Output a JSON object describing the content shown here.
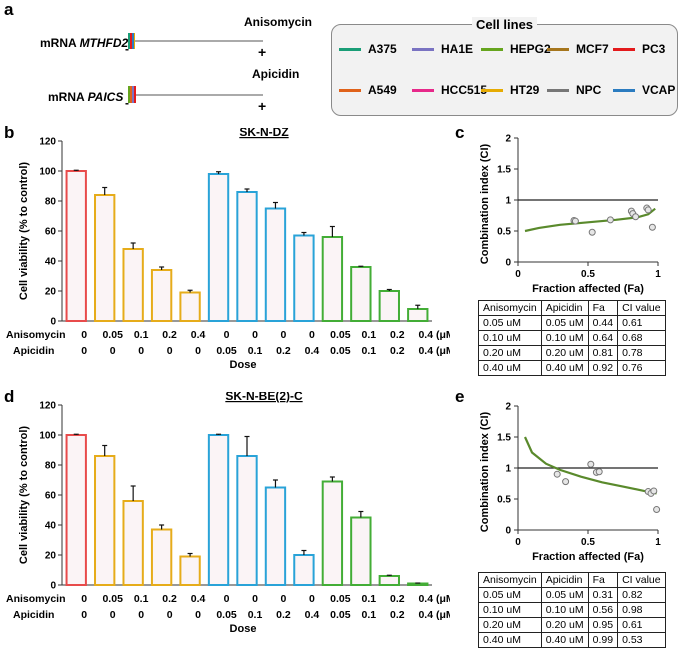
{
  "panels": {
    "a": "a",
    "b": "b",
    "c": "c",
    "d": "d",
    "e": "e"
  },
  "panel_a": {
    "tracks": [
      {
        "label_prefix": "mRNA ",
        "gene": "MTHFD2",
        "drug": "Anisomycin",
        "minus": "-",
        "plus": "+"
      },
      {
        "label_prefix": "mRNA ",
        "gene": "PAICS",
        "drug": "Apicidin",
        "minus": "-",
        "plus": "+"
      }
    ]
  },
  "legend": {
    "title": "Cell lines",
    "items": [
      {
        "name": "A375",
        "color": "#1a9e77"
      },
      {
        "name": "HA1E",
        "color": "#7a73c2"
      },
      {
        "name": "HEPG2",
        "color": "#66a51e"
      },
      {
        "name": "MCF7",
        "color": "#a6761d"
      },
      {
        "name": "PC3",
        "color": "#e31a1c"
      },
      {
        "name": "A549",
        "color": "#e0621a"
      },
      {
        "name": "HCC515",
        "color": "#e7298a"
      },
      {
        "name": "HT29",
        "color": "#e6ab02"
      },
      {
        "name": "NPC",
        "color": "#777777"
      },
      {
        "name": "VCAP",
        "color": "#2b7cc0"
      }
    ]
  },
  "chart_data": [
    {
      "id": "b",
      "type": "bar",
      "title": "SK-N-DZ",
      "ylabel": "Cell viability (% to control)",
      "xlabel": "Dose",
      "ylim": [
        0,
        120
      ],
      "yticks": [
        0,
        20,
        40,
        60,
        80,
        100,
        120
      ],
      "row_labels": [
        "Anisomycin",
        "Apicidin"
      ],
      "unit": "(μM)",
      "anisomycin": [
        "0",
        "0.05",
        "0.1",
        "0.2",
        "0.4",
        "0",
        "0",
        "0",
        "0",
        "0.05",
        "0.1",
        "0.2",
        "0.4"
      ],
      "apicidin": [
        "0",
        "0",
        "0",
        "0",
        "0",
        "0.05",
        "0.1",
        "0.2",
        "0.4",
        "0.05",
        "0.1",
        "0.2",
        "0.4"
      ],
      "values": [
        100,
        84,
        48,
        34,
        19,
        98,
        86,
        75,
        57,
        56,
        36,
        20,
        8
      ],
      "errors": [
        0.5,
        5,
        4,
        2,
        1.5,
        1.5,
        2,
        4,
        2,
        7,
        0.5,
        1,
        2.5
      ],
      "colors": [
        "#e84b4b",
        "#e6ac1a",
        "#e6ac1a",
        "#e6ac1a",
        "#e6ac1a",
        "#29a3d8",
        "#29a3d8",
        "#29a3d8",
        "#29a3d8",
        "#43ad36",
        "#43ad36",
        "#43ad36",
        "#43ad36"
      ]
    },
    {
      "id": "d",
      "type": "bar",
      "title": "SK-N-BE(2)-C",
      "ylabel": "Cell viability (% to control)",
      "xlabel": "Dose",
      "ylim": [
        0,
        120
      ],
      "yticks": [
        0,
        20,
        40,
        60,
        80,
        100,
        120
      ],
      "row_labels": [
        "Anisomycin",
        "Apicidin"
      ],
      "unit": "(μM)",
      "anisomycin": [
        "0",
        "0.05",
        "0.1",
        "0.2",
        "0.4",
        "0",
        "0",
        "0",
        "0",
        "0.05",
        "0.1",
        "0.2",
        "0.4"
      ],
      "apicidin": [
        "0",
        "0",
        "0",
        "0",
        "0",
        "0.05",
        "0.1",
        "0.2",
        "0.4",
        "0.05",
        "0.1",
        "0.2",
        "0.4"
      ],
      "values": [
        100,
        86,
        56,
        37,
        19,
        100,
        86,
        65,
        20,
        69,
        45,
        6,
        1
      ],
      "errors": [
        0.5,
        7,
        10,
        3,
        2,
        0.5,
        13,
        5,
        3,
        3,
        4,
        0.5,
        0.3
      ],
      "colors": [
        "#e84b4b",
        "#e6ac1a",
        "#e6ac1a",
        "#e6ac1a",
        "#e6ac1a",
        "#29a3d8",
        "#29a3d8",
        "#29a3d8",
        "#29a3d8",
        "#43ad36",
        "#43ad36",
        "#43ad36",
        "#43ad36"
      ]
    },
    {
      "id": "c",
      "type": "scatter",
      "ylabel": "Combination index (CI)",
      "xlabel": "Fraction affected (Fa)",
      "xlim": [
        0,
        1
      ],
      "ylim": [
        0,
        2
      ],
      "xticks": [
        0,
        0.5,
        1
      ],
      "yticks": [
        0,
        0.5,
        1,
        1.5,
        2
      ],
      "reference_y": 1,
      "points": [
        [
          0.4,
          0.67
        ],
        [
          0.41,
          0.66
        ],
        [
          0.53,
          0.48
        ],
        [
          0.66,
          0.68
        ],
        [
          0.81,
          0.82
        ],
        [
          0.82,
          0.78
        ],
        [
          0.84,
          0.73
        ],
        [
          0.92,
          0.87
        ],
        [
          0.93,
          0.84
        ],
        [
          0.96,
          0.56
        ]
      ],
      "curve": [
        [
          0.05,
          0.5
        ],
        [
          0.15,
          0.55
        ],
        [
          0.3,
          0.6
        ],
        [
          0.5,
          0.64
        ],
        [
          0.7,
          0.68
        ],
        [
          0.85,
          0.72
        ],
        [
          0.93,
          0.77
        ],
        [
          0.98,
          0.86
        ]
      ],
      "curve_color": "#5a8a2c"
    },
    {
      "id": "e",
      "type": "scatter",
      "ylabel": "Combination index (CI)",
      "xlabel": "Fraction affected (Fa)",
      "xlim": [
        0,
        1
      ],
      "ylim": [
        0,
        2
      ],
      "xticks": [
        0,
        0.5,
        1
      ],
      "yticks": [
        0,
        0.5,
        1,
        1.5,
        2
      ],
      "reference_y": 1,
      "points": [
        [
          0.28,
          0.9
        ],
        [
          0.34,
          0.78
        ],
        [
          0.52,
          1.06
        ],
        [
          0.56,
          0.93
        ],
        [
          0.58,
          0.94
        ],
        [
          0.93,
          0.62
        ],
        [
          0.95,
          0.59
        ],
        [
          0.97,
          0.63
        ],
        [
          0.99,
          0.33
        ]
      ],
      "curve": [
        [
          0.05,
          1.5
        ],
        [
          0.1,
          1.25
        ],
        [
          0.2,
          1.07
        ],
        [
          0.3,
          0.97
        ],
        [
          0.45,
          0.86
        ],
        [
          0.6,
          0.77
        ],
        [
          0.75,
          0.7
        ],
        [
          0.9,
          0.63
        ],
        [
          0.99,
          0.59
        ]
      ],
      "curve_color": "#5a8a2c"
    }
  ],
  "tables": {
    "c": {
      "header": [
        "Anisomycin",
        "Apicidin",
        "Fa",
        "CI value"
      ],
      "rows": [
        [
          "0.05 uM",
          "0.05 uM",
          "0.44",
          "0.61"
        ],
        [
          "0.10 uM",
          "0.10 uM",
          "0.64",
          "0.68"
        ],
        [
          "0.20 uM",
          "0.20 uM",
          "0.81",
          "0.78"
        ],
        [
          "0.40 uM",
          "0.40 uM",
          "0.92",
          "0.76"
        ]
      ]
    },
    "e": {
      "header": [
        "Anisomycin",
        "Apicidin",
        "Fa",
        "CI value"
      ],
      "rows": [
        [
          "0.05 uM",
          "0.05 uM",
          "0.31",
          "0.82"
        ],
        [
          "0.10 uM",
          "0.10 uM",
          "0.56",
          "0.98"
        ],
        [
          "0.20 uM",
          "0.20 uM",
          "0.95",
          "0.61"
        ],
        [
          "0.40 uM",
          "0.40 uM",
          "0.99",
          "0.53"
        ]
      ]
    }
  }
}
